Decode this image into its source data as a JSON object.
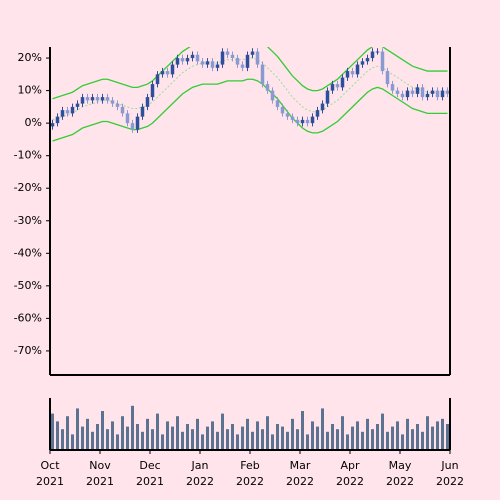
{
  "chart_data": {
    "type": "candlestick",
    "open": [
      -1,
      0,
      2,
      4,
      3,
      5,
      6,
      8,
      7,
      8,
      7,
      8,
      7,
      6,
      5,
      3,
      0,
      -2,
      2,
      5,
      8,
      12,
      15,
      16,
      15,
      18,
      20,
      19,
      20,
      21,
      19,
      18,
      19,
      17,
      18,
      22,
      21,
      20,
      18,
      17,
      21,
      22,
      18,
      12,
      10,
      7,
      5,
      3,
      2,
      1,
      0,
      1,
      0,
      2,
      4,
      6,
      10,
      12,
      11,
      14,
      16,
      15,
      18,
      19,
      20,
      22,
      22,
      16,
      12,
      10,
      9,
      8,
      10,
      9,
      11,
      8,
      9,
      10,
      8,
      10
    ],
    "high": [
      1,
      3,
      5,
      5,
      6,
      7,
      9,
      9,
      9,
      9,
      9,
      9,
      8,
      7,
      6,
      4,
      1,
      3,
      6,
      9,
      13,
      16,
      17,
      17,
      19,
      21,
      21,
      21,
      22,
      22,
      20,
      20,
      20,
      19,
      23,
      23,
      22,
      21,
      19,
      22,
      23,
      23,
      19,
      13,
      11,
      8,
      6,
      4,
      3,
      2,
      2,
      2,
      3,
      5,
      7,
      11,
      13,
      13,
      15,
      17,
      17,
      19,
      20,
      21,
      23,
      23,
      23,
      17,
      13,
      11,
      10,
      11,
      11,
      12,
      12,
      10,
      11,
      11,
      11,
      11
    ],
    "low": [
      -2,
      -1,
      1,
      2,
      2,
      4,
      5,
      6,
      6,
      6,
      6,
      6,
      5,
      4,
      2,
      -1,
      -3,
      -3,
      1,
      4,
      7,
      11,
      14,
      14,
      14,
      17,
      18,
      18,
      19,
      18,
      17,
      17,
      16,
      16,
      17,
      20,
      19,
      17,
      16,
      16,
      20,
      17,
      11,
      9,
      6,
      4,
      2,
      1,
      0,
      -1,
      -1,
      -1,
      -1,
      1,
      3,
      5,
      9,
      10,
      10,
      13,
      14,
      14,
      17,
      18,
      19,
      21,
      15,
      11,
      9,
      8,
      7,
      7,
      8,
      8,
      7,
      7,
      8,
      7,
      7,
      8
    ],
    "close": [
      0,
      2,
      4,
      3,
      5,
      6,
      8,
      7,
      8,
      7,
      8,
      7,
      6,
      5,
      3,
      0,
      -2,
      2,
      5,
      8,
      12,
      15,
      16,
      15,
      18,
      20,
      19,
      20,
      21,
      19,
      18,
      19,
      17,
      18,
      22,
      21,
      20,
      18,
      17,
      21,
      22,
      18,
      12,
      10,
      7,
      5,
      3,
      2,
      1,
      0,
      1,
      0,
      2,
      4,
      6,
      10,
      12,
      11,
      14,
      16,
      15,
      18,
      19,
      20,
      22,
      22,
      16,
      12,
      10,
      9,
      8,
      10,
      9,
      11,
      8,
      9,
      10,
      8,
      10,
      9
    ],
    "up_color": "#2f4f9a",
    "down_color": "#8a9ad0",
    "series": [
      {
        "color": "#33cc33",
        "values": [
          7.5,
          8,
          8.5,
          9,
          9.5,
          10.5,
          11.5,
          12,
          12.5,
          13,
          13.5,
          13.5,
          13,
          12.5,
          12,
          11.5,
          11,
          11,
          11.5,
          12,
          13,
          14.5,
          16,
          17.5,
          19,
          20.5,
          22,
          23,
          24,
          24.5,
          25,
          25,
          25,
          25,
          25.5,
          26,
          26,
          26,
          26,
          26.5,
          26.5,
          26,
          25,
          23.5,
          22,
          20.5,
          18.5,
          16.5,
          14.5,
          13,
          11.5,
          10.5,
          10,
          10,
          10.5,
          11.5,
          12.5,
          13.5,
          15,
          16.5,
          18,
          19.5,
          21,
          22.5,
          23.5,
          24,
          23.5,
          22.5,
          21.5,
          20.5,
          19.5,
          18.5,
          17.5,
          17,
          16.5,
          16,
          16,
          16,
          16,
          16
        ]
      },
      {
        "color": "#99dd99",
        "values": [
          1,
          1.5,
          2,
          2.5,
          3,
          4,
          5,
          5.5,
          6,
          6.5,
          7,
          7,
          6.5,
          6,
          5.5,
          5,
          4.5,
          4.5,
          5,
          5.5,
          6.5,
          8,
          9.5,
          11,
          12.5,
          14,
          15.5,
          16.5,
          17.5,
          18,
          18.5,
          18.5,
          18.5,
          18.5,
          19,
          19.5,
          19.5,
          19.5,
          19.5,
          20,
          20,
          19.5,
          18.5,
          17,
          15.5,
          14,
          12,
          10,
          8,
          6.5,
          5,
          4,
          3.5,
          3.5,
          4,
          5,
          6,
          7,
          8.5,
          10,
          11.5,
          13,
          14.5,
          16,
          17,
          17.5,
          17,
          16,
          15,
          14,
          13,
          12,
          11,
          10.5,
          10,
          9.5,
          9.5,
          9.5,
          9.5,
          9.5
        ]
      },
      {
        "color": "#33cc33",
        "values": [
          -5.5,
          -5,
          -4.5,
          -4,
          -3.5,
          -2.5,
          -1.5,
          -1,
          -0.5,
          0,
          0.5,
          0.5,
          0,
          -0.5,
          -1,
          -1.5,
          -2,
          -2,
          -1.5,
          -1,
          0,
          1.5,
          3,
          4.5,
          6,
          7.5,
          9,
          10,
          11,
          11.5,
          12,
          12,
          12,
          12,
          12.5,
          13,
          13,
          13,
          13,
          13.5,
          13.5,
          13,
          12,
          10.5,
          9,
          7.5,
          5.5,
          3.5,
          1.5,
          0,
          -1.5,
          -2.5,
          -3,
          -3,
          -2.5,
          -1.5,
          -0.5,
          0.5,
          2,
          3.5,
          5,
          6.5,
          8,
          9.5,
          10.5,
          11,
          10.5,
          9.5,
          8.5,
          7.5,
          6.5,
          5.5,
          4.5,
          4,
          3.5,
          3,
          3,
          3,
          3,
          3
        ]
      }
    ],
    "volume": {
      "color": "#5b7390",
      "values": [
        70,
        55,
        40,
        65,
        30,
        80,
        45,
        60,
        35,
        50,
        75,
        40,
        55,
        30,
        65,
        45,
        85,
        50,
        35,
        60,
        40,
        70,
        30,
        55,
        45,
        65,
        35,
        50,
        40,
        60,
        30,
        45,
        55,
        35,
        70,
        40,
        50,
        30,
        45,
        60,
        35,
        55,
        40,
        65,
        30,
        50,
        45,
        35,
        60,
        40,
        75,
        30,
        55,
        45,
        80,
        35,
        50,
        40,
        65,
        30,
        45,
        55,
        35,
        60,
        40,
        50,
        70,
        35,
        45,
        55,
        30,
        60,
        40,
        50,
        35,
        65,
        45,
        55,
        60,
        50
      ],
      "ylim": [
        0,
        100
      ]
    },
    "xlim": [
      -0.5,
      79.5
    ],
    "xticks": [
      {
        "value": -0.5,
        "label": [
          "Oct",
          "2021"
        ]
      },
      {
        "value": 9.5,
        "label": [
          "Nov",
          "2021"
        ]
      },
      {
        "value": 19.5,
        "label": [
          "Dec",
          "2021"
        ]
      },
      {
        "value": 29.5,
        "label": [
          "Jan",
          "2022"
        ]
      },
      {
        "value": 39.5,
        "label": [
          "Feb",
          "2022"
        ]
      },
      {
        "value": 49.5,
        "label": [
          "Mar",
          "2022"
        ]
      },
      {
        "value": 59.5,
        "label": [
          "Apr",
          "2022"
        ]
      },
      {
        "value": 69.5,
        "label": [
          "May",
          "2022"
        ]
      },
      {
        "value": 79.5,
        "label": [
          "Jun",
          "2022"
        ]
      }
    ],
    "ylim": [
      -77.4,
      23.4
    ],
    "yticks": [
      {
        "value": 20,
        "label": "20%"
      },
      {
        "value": 10,
        "label": "10%"
      },
      {
        "value": 0,
        "label": "0%"
      },
      {
        "value": -10,
        "label": "-10%"
      },
      {
        "value": -20,
        "label": "-20%"
      },
      {
        "value": -30,
        "label": "-30%"
      },
      {
        "value": -40,
        "label": "-40%"
      },
      {
        "value": -50,
        "label": "-50%"
      },
      {
        "value": -60,
        "label": "-60%"
      },
      {
        "value": -70,
        "label": "-70%"
      }
    ]
  }
}
